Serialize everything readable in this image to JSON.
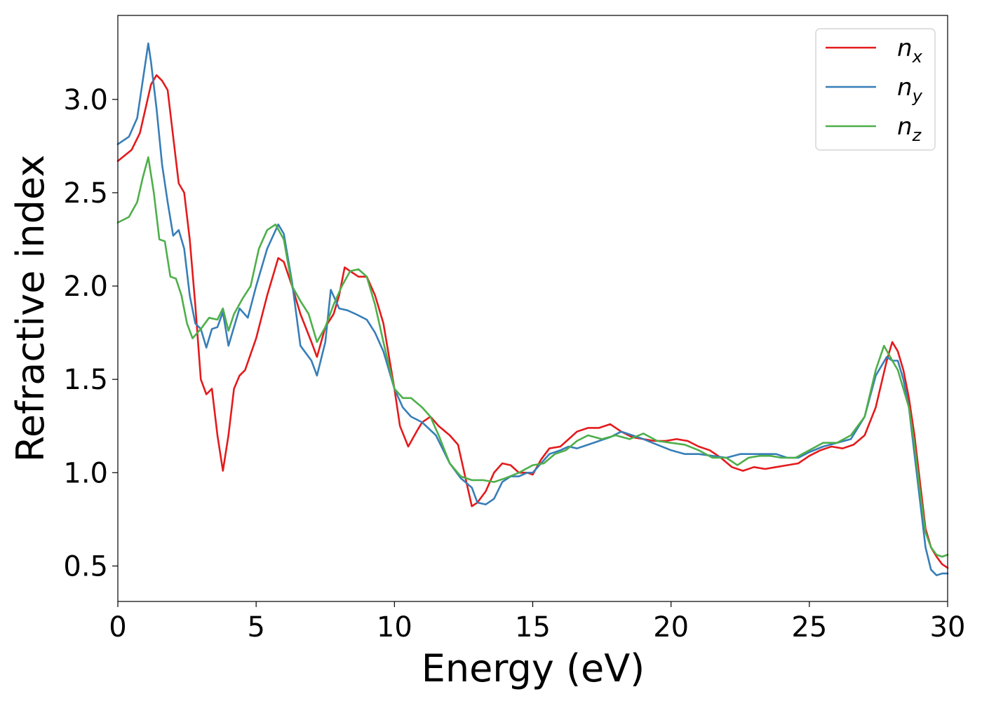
{
  "chart_data": {
    "type": "line",
    "xlabel": "Energy (eV)",
    "ylabel": "Refractive index",
    "xlim": [
      0,
      30
    ],
    "ylim": [
      0.31,
      3.45
    ],
    "xticks": [
      0,
      5,
      10,
      15,
      20,
      25,
      30
    ],
    "yticks": [
      0.5,
      1.0,
      1.5,
      2.0,
      2.5,
      3.0
    ],
    "xtick_labels": [
      "0",
      "5",
      "10",
      "15",
      "20",
      "25",
      "30"
    ],
    "ytick_labels": [
      "0.5",
      "1.0",
      "1.5",
      "2.0",
      "2.5",
      "3.0"
    ],
    "grid": false,
    "legend_position": "top-right",
    "series": [
      {
        "name": "n_x",
        "label_base": "n",
        "label_sub": "x",
        "color": "#e41a1c",
        "x": [
          0,
          0.5,
          0.8,
          1.0,
          1.2,
          1.4,
          1.6,
          1.8,
          2.0,
          2.2,
          2.4,
          2.6,
          2.8,
          3.0,
          3.2,
          3.4,
          3.6,
          3.8,
          4.0,
          4.2,
          4.4,
          4.6,
          5.0,
          5.4,
          5.8,
          6.0,
          6.3,
          6.6,
          7.0,
          7.2,
          7.5,
          7.8,
          8.0,
          8.2,
          8.4,
          8.7,
          9.0,
          9.3,
          9.6,
          10.0,
          10.2,
          10.5,
          10.8,
          11.0,
          11.3,
          11.6,
          12.0,
          12.3,
          12.6,
          12.8,
          13.0,
          13.3,
          13.6,
          13.9,
          14.2,
          14.5,
          14.8,
          15.0,
          15.3,
          15.6,
          16.0,
          16.3,
          16.6,
          17.0,
          17.4,
          17.8,
          18.2,
          18.6,
          19.0,
          19.4,
          19.8,
          20.2,
          20.6,
          21.0,
          21.4,
          21.8,
          22.2,
          22.6,
          23.0,
          23.4,
          23.8,
          24.2,
          24.6,
          25.0,
          25.4,
          25.8,
          26.2,
          26.6,
          27.0,
          27.4,
          27.8,
          28.0,
          28.2,
          28.4,
          28.6,
          28.8,
          29.0,
          29.2,
          29.4,
          29.6,
          29.8,
          30.0
        ],
        "values": [
          2.67,
          2.73,
          2.82,
          2.95,
          3.08,
          3.13,
          3.1,
          3.05,
          2.8,
          2.55,
          2.5,
          2.25,
          1.9,
          1.5,
          1.42,
          1.45,
          1.2,
          1.01,
          1.2,
          1.45,
          1.52,
          1.55,
          1.72,
          1.95,
          2.15,
          2.13,
          2.0,
          1.85,
          1.7,
          1.62,
          1.78,
          1.85,
          1.95,
          2.1,
          2.08,
          2.05,
          2.05,
          1.95,
          1.8,
          1.45,
          1.25,
          1.14,
          1.22,
          1.27,
          1.3,
          1.25,
          1.2,
          1.15,
          0.95,
          0.82,
          0.84,
          0.9,
          1.0,
          1.05,
          1.04,
          1.0,
          1.0,
          0.99,
          1.07,
          1.13,
          1.14,
          1.18,
          1.22,
          1.24,
          1.24,
          1.26,
          1.22,
          1.19,
          1.18,
          1.17,
          1.17,
          1.18,
          1.17,
          1.14,
          1.12,
          1.08,
          1.03,
          1.01,
          1.03,
          1.02,
          1.03,
          1.04,
          1.05,
          1.09,
          1.12,
          1.14,
          1.13,
          1.15,
          1.2,
          1.35,
          1.6,
          1.7,
          1.65,
          1.55,
          1.4,
          1.2,
          0.95,
          0.7,
          0.6,
          0.55,
          0.51,
          0.49
        ]
      },
      {
        "name": "n_y",
        "label_base": "n",
        "label_sub": "y",
        "color": "#377eb8",
        "x": [
          0,
          0.4,
          0.7,
          0.9,
          1.1,
          1.2,
          1.4,
          1.6,
          1.8,
          2.0,
          2.2,
          2.4,
          2.6,
          2.8,
          3.0,
          3.2,
          3.4,
          3.6,
          3.8,
          4.0,
          4.2,
          4.4,
          4.7,
          5.0,
          5.4,
          5.8,
          6.0,
          6.3,
          6.6,
          7.0,
          7.2,
          7.5,
          7.7,
          8.0,
          8.3,
          8.6,
          9.0,
          9.3,
          9.6,
          10.0,
          10.3,
          10.6,
          11.0,
          11.5,
          12.0,
          12.4,
          12.8,
          13.0,
          13.3,
          13.6,
          13.9,
          14.2,
          14.5,
          14.8,
          15.0,
          15.3,
          15.6,
          16.0,
          16.3,
          16.6,
          17.0,
          17.4,
          17.8,
          18.2,
          18.6,
          19.0,
          19.5,
          20.0,
          20.5,
          21.0,
          21.5,
          22.0,
          22.5,
          23.0,
          23.4,
          23.8,
          24.2,
          24.6,
          25.0,
          25.5,
          26.0,
          26.5,
          27.0,
          27.4,
          27.8,
          28.0,
          28.2,
          28.4,
          28.6,
          28.8,
          29.0,
          29.2,
          29.4,
          29.6,
          29.8,
          30.0
        ],
        "values": [
          2.76,
          2.8,
          2.9,
          3.1,
          3.3,
          3.2,
          2.95,
          2.65,
          2.45,
          2.27,
          2.3,
          2.2,
          1.95,
          1.8,
          1.77,
          1.67,
          1.77,
          1.78,
          1.86,
          1.68,
          1.78,
          1.88,
          1.83,
          2.0,
          2.2,
          2.33,
          2.28,
          2.02,
          1.68,
          1.6,
          1.52,
          1.7,
          1.98,
          1.88,
          1.87,
          1.85,
          1.82,
          1.75,
          1.65,
          1.45,
          1.35,
          1.3,
          1.27,
          1.2,
          1.05,
          0.97,
          0.92,
          0.84,
          0.83,
          0.86,
          0.95,
          0.98,
          0.98,
          1.0,
          1.0,
          1.05,
          1.1,
          1.12,
          1.14,
          1.13,
          1.15,
          1.17,
          1.19,
          1.22,
          1.2,
          1.18,
          1.15,
          1.12,
          1.1,
          1.1,
          1.09,
          1.08,
          1.1,
          1.1,
          1.1,
          1.1,
          1.08,
          1.08,
          1.11,
          1.14,
          1.16,
          1.18,
          1.3,
          1.52,
          1.62,
          1.6,
          1.6,
          1.5,
          1.35,
          1.1,
          0.85,
          0.6,
          0.48,
          0.45,
          0.46,
          0.46
        ]
      },
      {
        "name": "n_z",
        "label_base": "n",
        "label_sub": "z",
        "color": "#4daf4a",
        "x": [
          0,
          0.4,
          0.7,
          0.9,
          1.1,
          1.3,
          1.5,
          1.7,
          1.9,
          2.1,
          2.3,
          2.5,
          2.7,
          3.0,
          3.3,
          3.6,
          3.8,
          4.0,
          4.2,
          4.5,
          4.8,
          5.1,
          5.4,
          5.7,
          6.0,
          6.3,
          6.6,
          6.9,
          7.2,
          7.5,
          7.8,
          8.1,
          8.4,
          8.7,
          9.0,
          9.3,
          9.6,
          10.0,
          10.3,
          10.6,
          11.0,
          11.3,
          11.6,
          12.0,
          12.4,
          12.8,
          13.2,
          13.6,
          14.0,
          14.5,
          15.0,
          15.4,
          15.8,
          16.2,
          16.6,
          17.0,
          17.5,
          18.0,
          18.5,
          19.0,
          19.5,
          20.0,
          20.5,
          21.0,
          21.5,
          22.0,
          22.4,
          22.8,
          23.2,
          23.6,
          24.0,
          24.5,
          25.0,
          25.5,
          26.0,
          26.5,
          27.0,
          27.4,
          27.7,
          28.0,
          28.2,
          28.4,
          28.6,
          28.8,
          29.0,
          29.2,
          29.4,
          29.6,
          29.8,
          30.0
        ],
        "values": [
          2.34,
          2.37,
          2.45,
          2.58,
          2.69,
          2.5,
          2.25,
          2.24,
          2.05,
          2.04,
          1.95,
          1.8,
          1.72,
          1.77,
          1.83,
          1.82,
          1.88,
          1.76,
          1.85,
          1.93,
          2.0,
          2.2,
          2.3,
          2.33,
          2.25,
          2.0,
          1.92,
          1.85,
          1.7,
          1.78,
          1.9,
          2.0,
          2.08,
          2.09,
          2.05,
          1.9,
          1.7,
          1.45,
          1.4,
          1.4,
          1.35,
          1.3,
          1.2,
          1.05,
          0.98,
          0.96,
          0.96,
          0.95,
          0.97,
          1.0,
          1.04,
          1.05,
          1.1,
          1.12,
          1.17,
          1.2,
          1.18,
          1.2,
          1.18,
          1.21,
          1.17,
          1.16,
          1.15,
          1.12,
          1.08,
          1.08,
          1.04,
          1.08,
          1.09,
          1.09,
          1.08,
          1.08,
          1.12,
          1.16,
          1.16,
          1.2,
          1.3,
          1.55,
          1.68,
          1.6,
          1.55,
          1.45,
          1.35,
          1.15,
          0.9,
          0.68,
          0.6,
          0.56,
          0.55,
          0.56
        ]
      }
    ]
  }
}
